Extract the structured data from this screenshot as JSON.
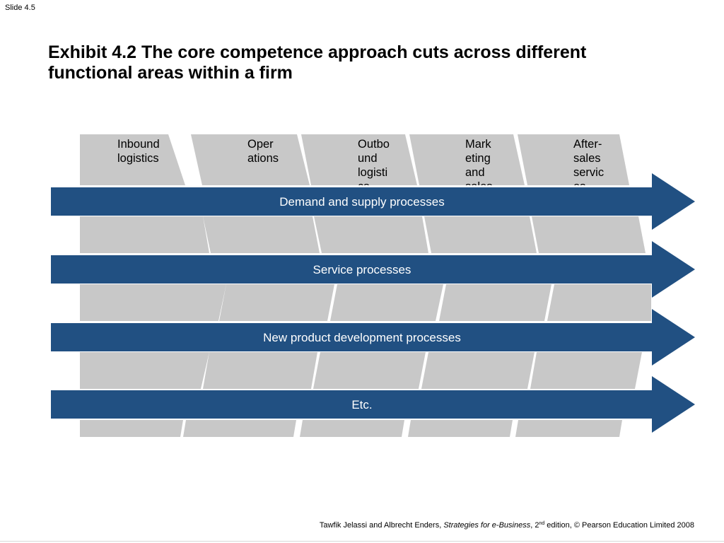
{
  "slide_label": "Slide 4.5",
  "title": "Exhibit 4.2 The core competence approach cuts across different functional areas within a firm",
  "columns": [
    {
      "lines": [
        "Inbound",
        "logistics"
      ]
    },
    {
      "lines": [
        "Oper",
        "ations"
      ]
    },
    {
      "lines": [
        "Outbo",
        "und",
        "logisti",
        "cs"
      ]
    },
    {
      "lines": [
        "Mark",
        "eting",
        "and",
        "sales"
      ]
    },
    {
      "lines": [
        "After-",
        "sales",
        "servic",
        "es"
      ]
    }
  ],
  "processes": [
    "Demand and supply processes",
    "Service processes",
    "New product development processes",
    "Etc."
  ],
  "footer": {
    "authors": "Tawfik Jelassi and Albrecht Enders, ",
    "book": "Strategies for e-Business",
    "edition_prefix": ", 2",
    "edition_sup": "nd",
    "edition_suffix": " edition, © Pearson Education Limited 2008"
  },
  "colors": {
    "arrow": "#215082",
    "column": "#c8c8c8",
    "arrow_text": "#ffffff"
  }
}
